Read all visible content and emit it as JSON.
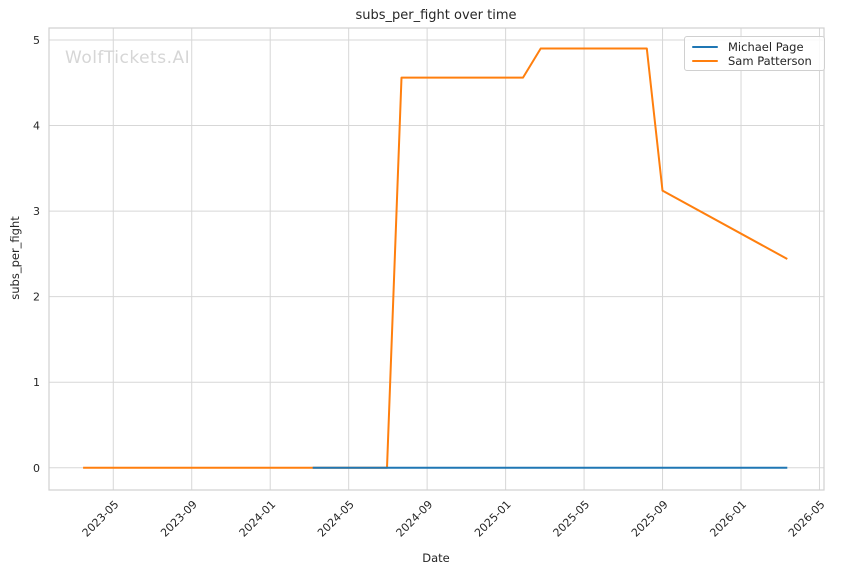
{
  "figure": {
    "watermark": "WolfTickets.AI",
    "background_color": "#ffffff",
    "grid_color": "#d7d7d7",
    "spine_color": "#d0d0d0",
    "text_color": "#262626"
  },
  "chart_data": {
    "type": "line",
    "title": "subs_per_fight over time",
    "xlabel": "Date",
    "ylabel": "subs_per_fight",
    "grid": true,
    "legend_position": "upper right",
    "x_ticks": [
      "2023-05",
      "2023-09",
      "2024-01",
      "2024-05",
      "2024-09",
      "2025-01",
      "2025-05",
      "2025-09",
      "2026-01",
      "2026-05"
    ],
    "y_ticks": [
      0,
      1,
      2,
      3,
      4,
      5
    ],
    "xlim": [
      "2023-01-23",
      "2026-05-08"
    ],
    "ylim": [
      -0.26,
      5.14
    ],
    "watermark": "WolfTickets.AI",
    "series": [
      {
        "name": "Michael Page",
        "color": "#1f77b4",
        "points": [
          [
            "2024-03-06",
            0.0
          ],
          [
            "2026-03-12",
            0.0
          ]
        ]
      },
      {
        "name": "Sam Patterson",
        "color": "#ff7f0e",
        "points": [
          [
            "2023-03-15",
            0.0
          ],
          [
            "2024-06-30",
            0.0
          ],
          [
            "2024-07-22",
            4.56
          ],
          [
            "2025-01-28",
            4.56
          ],
          [
            "2025-02-25",
            4.9
          ],
          [
            "2025-08-07",
            4.9
          ],
          [
            "2025-09-01",
            3.24
          ],
          [
            "2026-03-12",
            2.44
          ]
        ]
      }
    ]
  }
}
